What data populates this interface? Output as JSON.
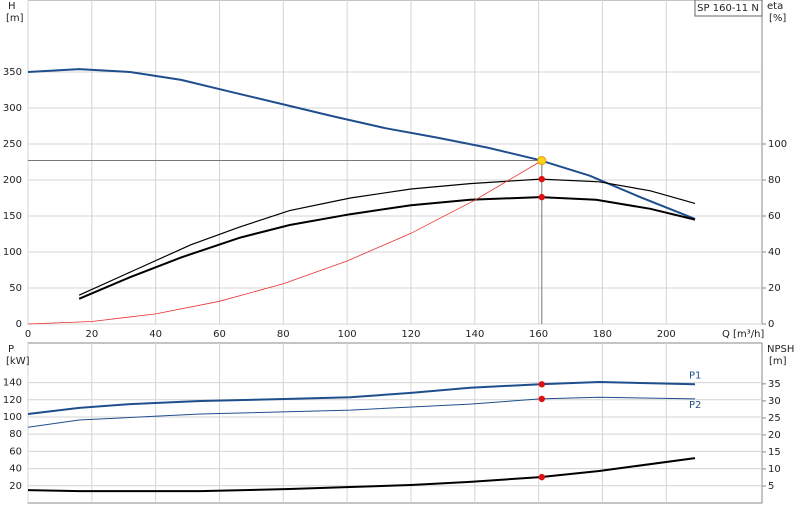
{
  "chart_data": [
    {
      "type": "line",
      "title": "SP 160-11 N",
      "ylabel": "H",
      "yunit": "[m]",
      "y2label": "eta",
      "y2unit": "[%]",
      "xlabel": "Q [m³/h]",
      "xlim": [
        0,
        230
      ],
      "ylim": [
        0,
        450
      ],
      "y2lim": [
        0,
        180
      ],
      "xticks": [
        0,
        20,
        40,
        60,
        80,
        100,
        120,
        140,
        160,
        180,
        200
      ],
      "yticks": [
        0,
        50,
        100,
        150,
        200,
        250,
        300,
        350
      ],
      "y2ticks": [
        0,
        20,
        40,
        60,
        80,
        100
      ],
      "grid": true,
      "series": [
        {
          "color": "#1f4e8c",
          "width": 2,
          "axis": "y",
          "x": [
            0,
            16,
            32,
            48,
            64,
            80,
            96,
            112,
            128,
            144,
            160,
            176,
            192,
            209
          ],
          "values": [
            350,
            354,
            350,
            339,
            322,
            305,
            288,
            272,
            259,
            245,
            228,
            206,
            176,
            146
          ]
        },
        {
          "color": "#000000",
          "width": 1.2,
          "axis": "y2",
          "x": [
            16,
            33.5,
            51,
            66.5,
            82,
            101,
            120,
            138.5,
            160.5,
            179,
            195,
            209
          ],
          "values": [
            16,
            30,
            44,
            54,
            63,
            70,
            75,
            78,
            80.5,
            79,
            74,
            67
          ]
        },
        {
          "color": "#000000",
          "width": 2,
          "axis": "y2",
          "x": [
            16,
            32,
            48,
            66.5,
            82,
            101,
            120,
            138.5,
            160.5,
            178,
            195,
            209
          ],
          "values": [
            14,
            26,
            37,
            48,
            55,
            61,
            66,
            69,
            70.5,
            69,
            64,
            58
          ]
        },
        {
          "color": "#e83030",
          "width": 0.8,
          "axis": "y",
          "x": [
            0,
            20,
            40,
            60,
            80,
            100,
            120,
            140,
            161
          ],
          "values": [
            0,
            3.5,
            14,
            31.5,
            56,
            87.5,
            126,
            172,
            227
          ]
        }
      ],
      "markers": [
        {
          "x": 161,
          "y": 227,
          "axis": "y",
          "color": "#ffd21a",
          "duty": true
        },
        {
          "x": 161,
          "y": 80.5,
          "axis": "y2",
          "color": "#e01010"
        },
        {
          "x": 161,
          "y": 70.5,
          "axis": "y2",
          "color": "#e01010"
        }
      ]
    },
    {
      "type": "line",
      "ylabel": "P",
      "yunit": "[kW]",
      "y2label": "NPSH",
      "y2unit": "[m]",
      "xlim": [
        0,
        230
      ],
      "ylim": [
        0,
        186
      ],
      "y2lim": [
        0,
        47
      ],
      "yticks": [
        20,
        40,
        60,
        80,
        100,
        120,
        140
      ],
      "y2ticks": [
        5,
        10,
        15,
        20,
        25,
        30,
        35
      ],
      "grid": true,
      "series": [
        {
          "name": "P1",
          "color": "#1f4e8c",
          "width": 2,
          "axis": "y",
          "x": [
            0,
            16,
            32,
            54,
            82,
            101,
            120,
            138.5,
            160.5,
            179,
            209
          ],
          "values": [
            103.5,
            110.5,
            115,
            118.6,
            121,
            123,
            128,
            134,
            138,
            140.7,
            138
          ]
        },
        {
          "name": "P2",
          "color": "#1f4e8c",
          "width": 1,
          "axis": "y",
          "x": [
            0,
            16,
            54,
            101,
            138.5,
            160.5,
            179,
            209
          ],
          "values": [
            88,
            96.5,
            103.5,
            108,
            115,
            121,
            123,
            121
          ]
        },
        {
          "color": "#000000",
          "width": 2,
          "axis": "y2",
          "x": [
            0,
            16,
            54,
            82,
            101,
            120,
            138.5,
            160.5,
            179,
            209
          ],
          "values": [
            3.8,
            3.5,
            3.5,
            4.1,
            4.7,
            5.3,
            6.2,
            7.6,
            9.4,
            13.2
          ]
        }
      ],
      "markers": [
        {
          "x": 161,
          "y": 138,
          "axis": "y",
          "color": "#e01010"
        },
        {
          "x": 161,
          "y": 121,
          "axis": "y",
          "color": "#e01010"
        },
        {
          "x": 161,
          "y": 7.6,
          "axis": "y2",
          "color": "#e01010"
        }
      ]
    }
  ]
}
